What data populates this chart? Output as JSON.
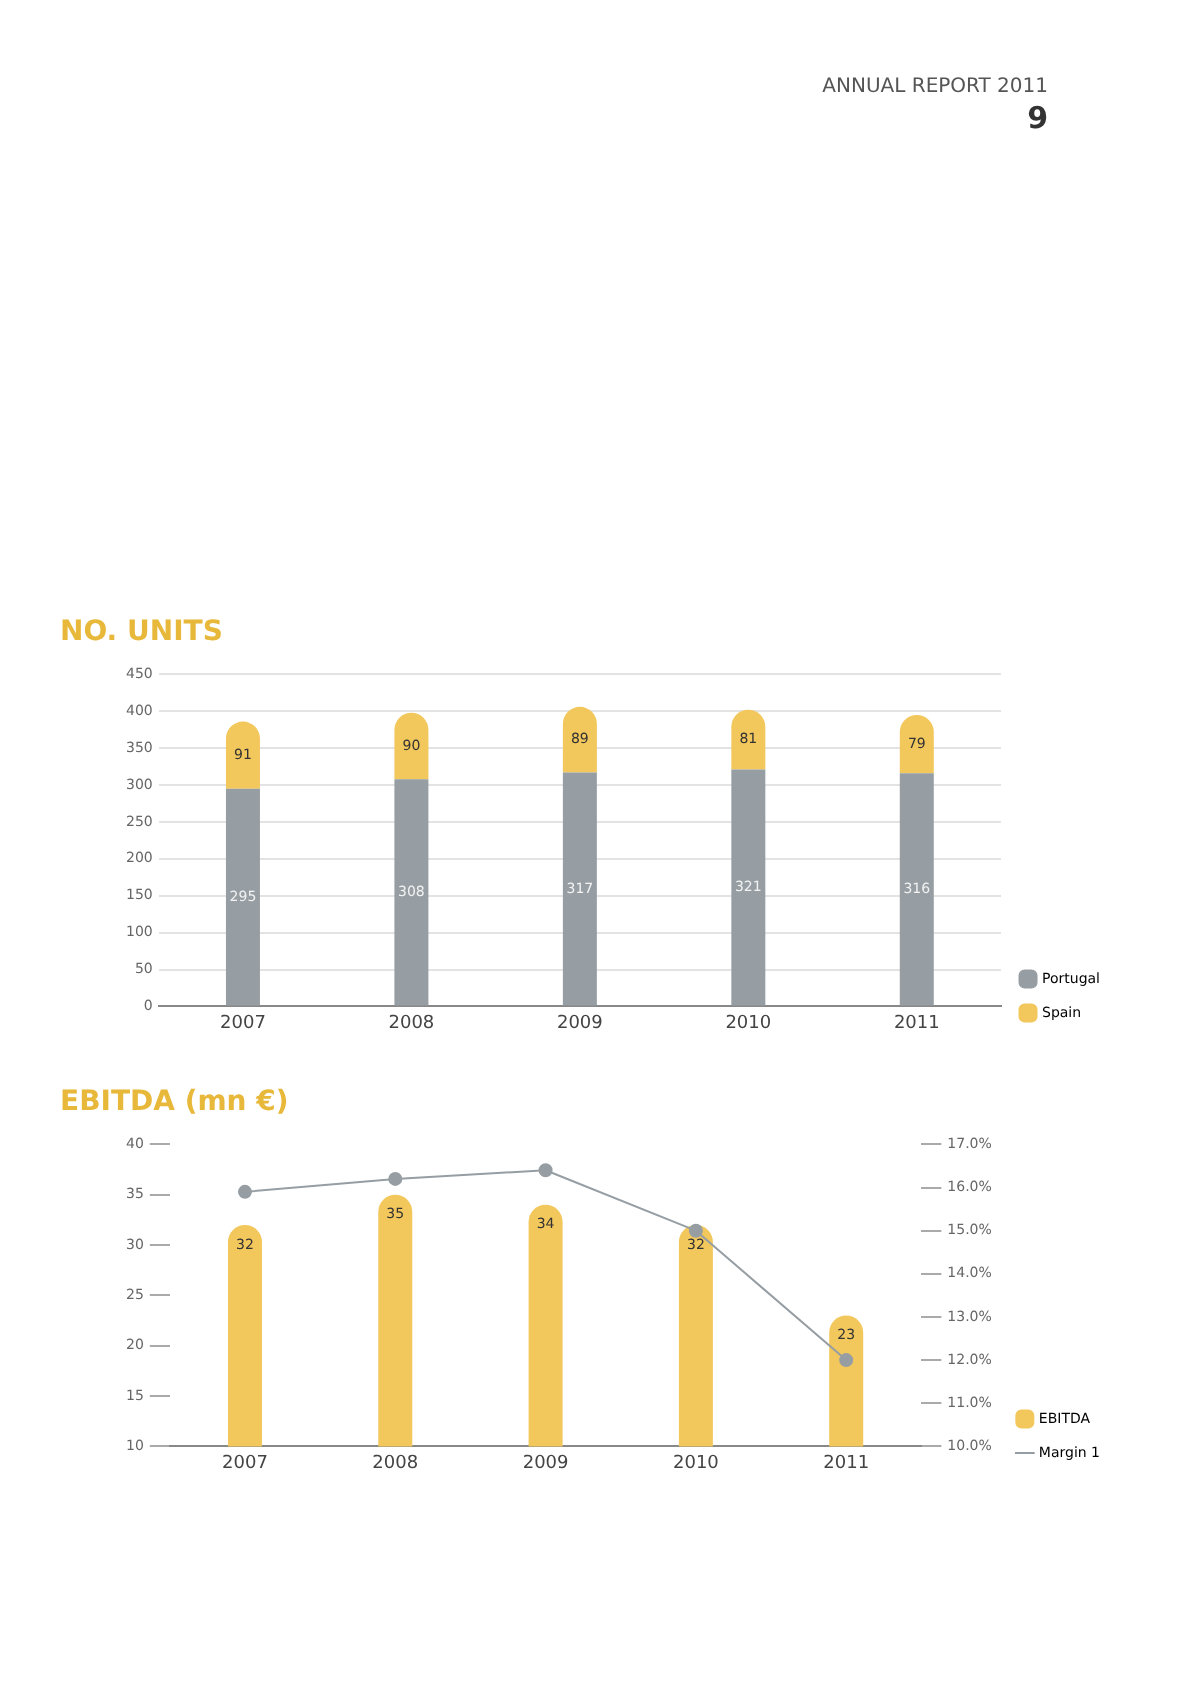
{
  "chart_data": [
    {
      "type": "bar",
      "title": "NO. UNITS",
      "annotations": [
        "ANNUAL REPORT 2011",
        "9"
      ],
      "categories": [
        "2007",
        "2008",
        "2009",
        "2010",
        "2011"
      ],
      "stacked": true,
      "data_labels": true,
      "series": [
        {
          "name": "Portugal",
          "color": "#969ea3",
          "values": [
            295,
            308,
            317,
            321,
            316
          ]
        },
        {
          "name": "Spain",
          "color": "#f2c75c",
          "values": [
            91,
            90,
            89,
            81,
            79
          ]
        }
      ],
      "ylim": [
        0,
        450
      ],
      "yticks": [
        0,
        50,
        100,
        150,
        200,
        250,
        300,
        350,
        400,
        450
      ],
      "grid": "y",
      "legend": "bottom right"
    },
    {
      "type": "bar",
      "title": "EBITDA (mn €)",
      "categories": [
        "2007",
        "2008",
        "2009",
        "2010",
        "2011"
      ],
      "series": [
        {
          "name": "EBITDA",
          "color": "#f2c75c",
          "values": [
            32,
            35,
            34,
            32,
            23
          ],
          "value_labels": [
            "32",
            "35",
            "34",
            "32",
            "23"
          ]
        },
        {
          "name": "Margin 1",
          "type": "line",
          "axis": "y2",
          "color": "#969ea3",
          "values": [
            15.9,
            16.2,
            16.4,
            15.0,
            12.0
          ]
        }
      ],
      "marker": "circle",
      "ylim": [
        10,
        40
      ],
      "yticks": [
        10,
        15,
        20,
        25,
        30,
        35,
        40
      ],
      "y2lim": [
        10,
        17
      ],
      "y2ticks": [
        {
          "value": 10,
          "label": "10.0%"
        },
        {
          "value": 11,
          "label": "11.0%"
        },
        {
          "value": 12,
          "label": "12.0%"
        },
        {
          "value": 13,
          "label": "13.0%"
        },
        {
          "value": 14,
          "label": "14.0%"
        },
        {
          "value": 15,
          "label": "15.0%"
        },
        {
          "value": 16,
          "label": "16.0%"
        },
        {
          "value": 17,
          "label": "17.0%"
        }
      ],
      "legend": "bottom right"
    }
  ]
}
